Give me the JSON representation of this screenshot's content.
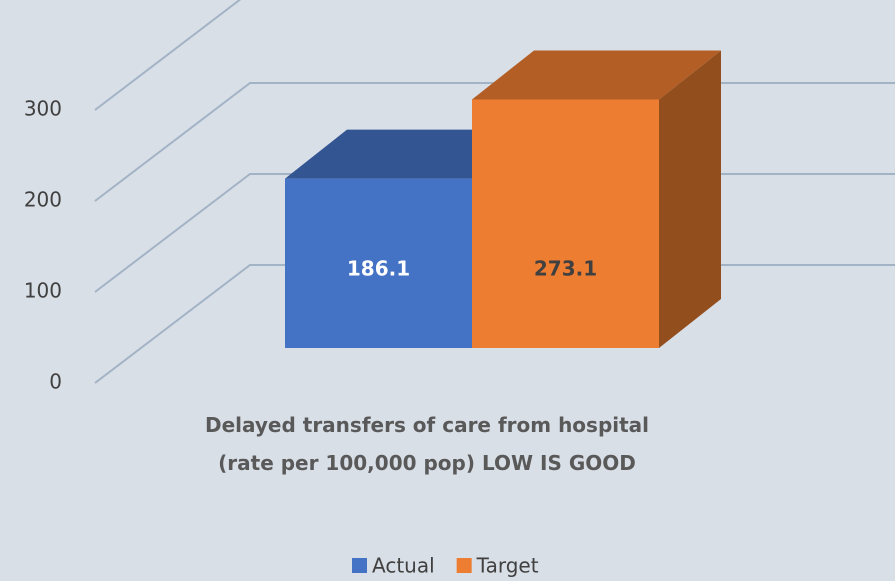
{
  "chart_data": {
    "type": "bar3d",
    "categories": [
      "Delayed transfers of care from hospital\n(rate per 100,000 pop) LOW IS GOOD"
    ],
    "series": [
      {
        "name": "Actual",
        "color": "#4472c4",
        "values": [
          186.1
        ]
      },
      {
        "name": "Target",
        "color": "#ed7d31",
        "values": [
          273.1
        ]
      }
    ],
    "ylim": [
      0,
      300
    ],
    "yticks": [
      0,
      100,
      200,
      300
    ],
    "grid": true,
    "legend": "bottom"
  }
}
